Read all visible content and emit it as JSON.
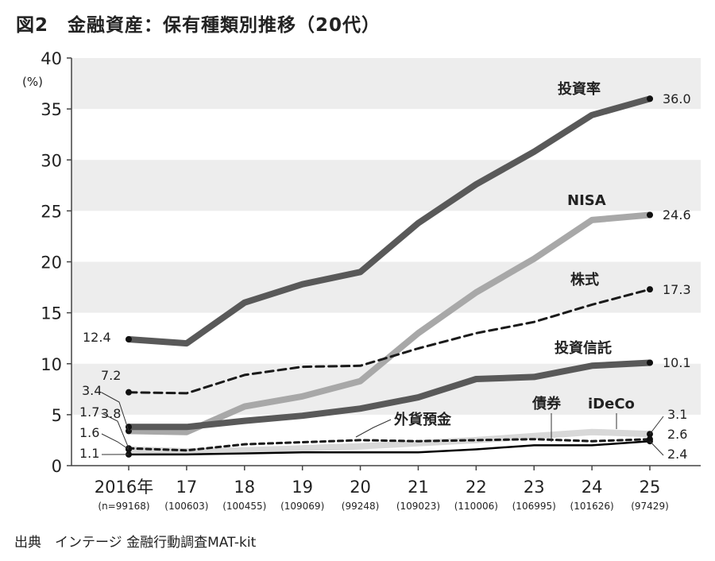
{
  "title": "図2　金融資産：保有種類別推移（20代）",
  "source": "出典　インテージ 金融行動調査MAT-kit",
  "chart_data": {
    "type": "line",
    "x": [
      "2016年",
      "17",
      "18",
      "19",
      "20",
      "21",
      "22",
      "23",
      "24",
      "25"
    ],
    "x_sample_sizes": [
      "(n=99168)",
      "(100603)",
      "(100455)",
      "(109069)",
      "(99248)",
      "(109023)",
      "(110006)",
      "(106995)",
      "(101626)",
      "(97429)"
    ],
    "y_unit": "(%)",
    "ylim": [
      0,
      40
    ],
    "yticks": [
      0,
      5,
      10,
      15,
      20,
      25,
      30,
      35,
      40
    ],
    "grid": "alternating horizontal bands",
    "series": [
      {
        "name": "投資率",
        "values": [
          12.4,
          12.0,
          16.0,
          17.8,
          19.0,
          23.8,
          27.6,
          30.8,
          34.4,
          36.0
        ],
        "color": "#595959",
        "style": "solid-thick",
        "start_label": "12.4",
        "end_label": "36.0"
      },
      {
        "name": "NISA",
        "values": [
          3.4,
          3.3,
          5.8,
          6.8,
          8.3,
          13.0,
          17.0,
          20.3,
          24.1,
          24.6
        ],
        "color": "#a8a8a8",
        "style": "solid-thick",
        "start_label": "3.4",
        "end_label": "24.6"
      },
      {
        "name": "株式",
        "values": [
          7.2,
          7.1,
          8.9,
          9.7,
          9.8,
          11.5,
          13.0,
          14.1,
          15.8,
          17.3
        ],
        "color": "#1a1a1a",
        "style": "dashed",
        "start_label": "7.2",
        "end_label": "17.3"
      },
      {
        "name": "投資信託",
        "values": [
          3.8,
          3.8,
          4.4,
          4.9,
          5.6,
          6.7,
          8.5,
          8.7,
          9.8,
          10.1
        ],
        "color": "#595959",
        "style": "solid-thick",
        "start_label": "3.8",
        "end_label": "10.1"
      },
      {
        "name": "外貨預金",
        "values": [
          1.7,
          1.5,
          2.1,
          2.3,
          2.5,
          2.4,
          2.5,
          2.6,
          2.4,
          2.6
        ],
        "color": "#1a1a1a",
        "style": "dashed-short",
        "start_label": "1.7",
        "end_label": "2.6"
      },
      {
        "name": "債券",
        "values": [
          1.1,
          1.1,
          1.2,
          1.3,
          1.3,
          1.3,
          1.6,
          2.0,
          2.0,
          2.4
        ],
        "color": "#000000",
        "style": "solid-thin",
        "start_label": "1.1",
        "end_label": "2.4"
      },
      {
        "name": "iDeCo",
        "values": [
          1.6,
          1.4,
          1.5,
          1.7,
          1.9,
          2.2,
          2.5,
          2.9,
          3.3,
          3.1
        ],
        "color": "#d8d8d8",
        "style": "solid-thick",
        "start_label": "1.6",
        "end_label": "3.1"
      }
    ]
  }
}
